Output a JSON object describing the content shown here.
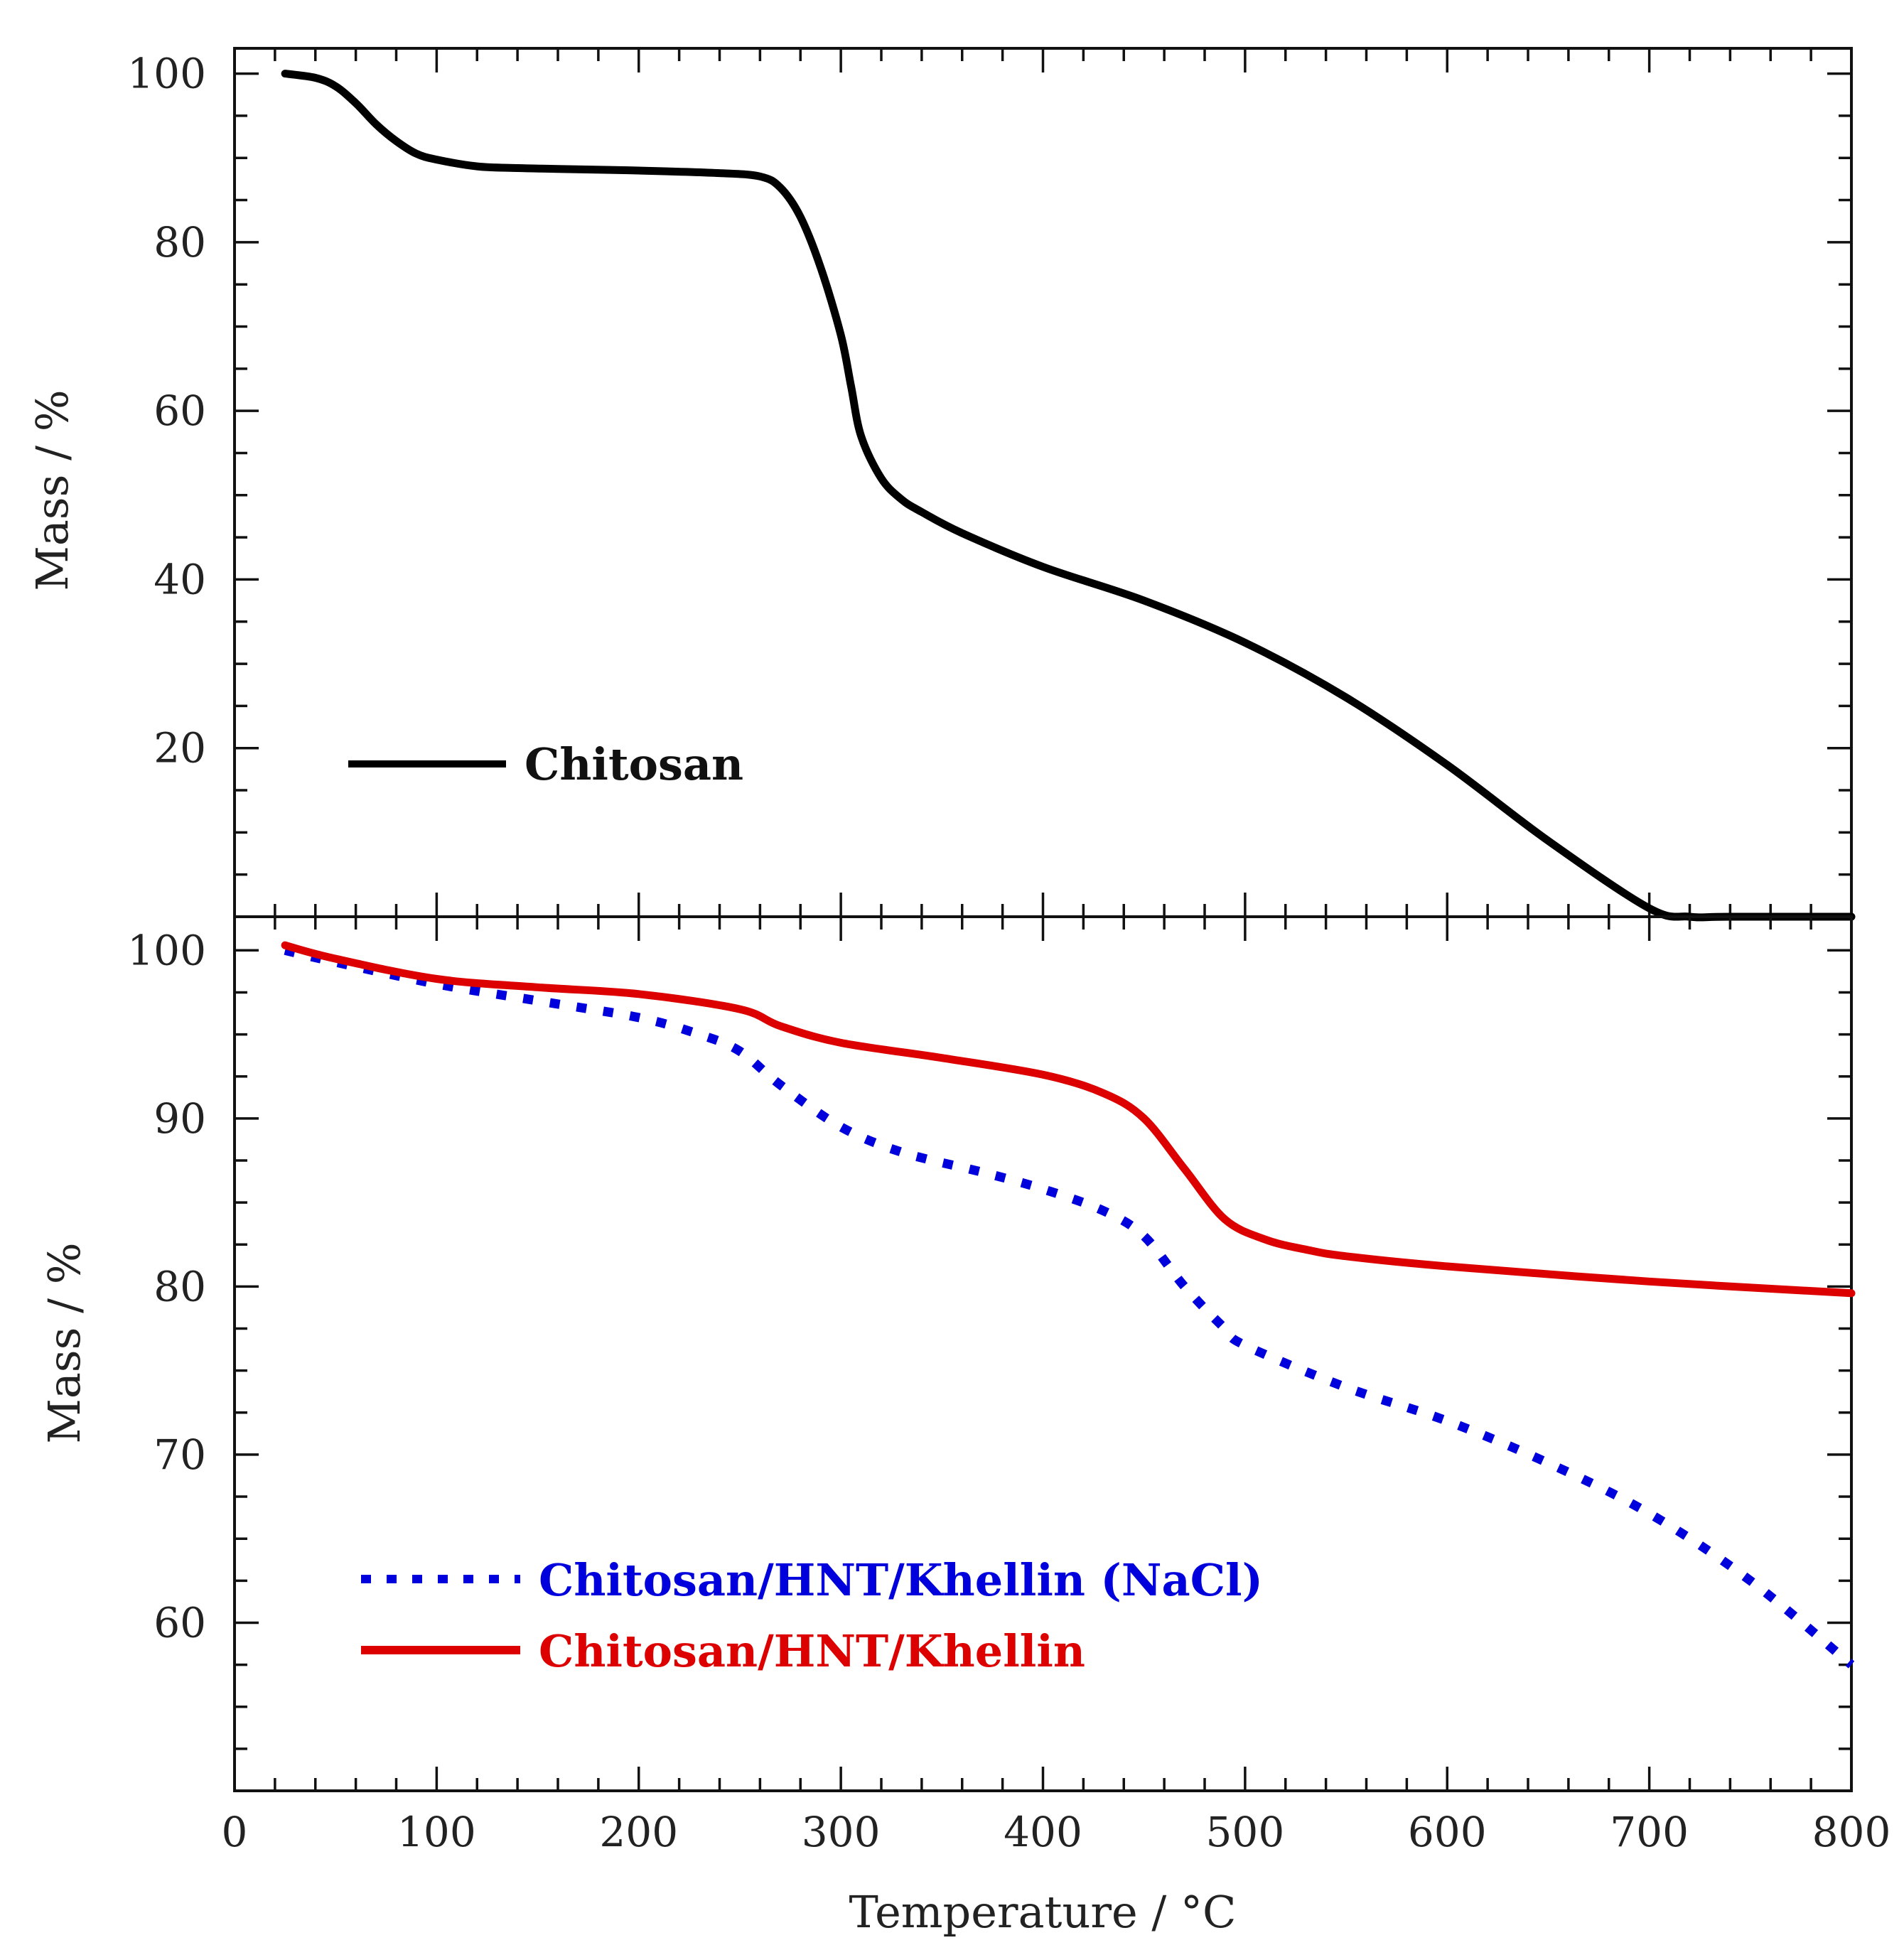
{
  "chart_data": [
    {
      "type": "line",
      "panel": "top",
      "title": "",
      "xlabel": "",
      "ylabel": "Mass / %",
      "xlim": [
        0,
        800
      ],
      "ylim": [
        0,
        103
      ],
      "yticks": [
        20,
        40,
        60,
        80,
        100
      ],
      "legend_position": "bottom-left",
      "series": [
        {
          "name": "Chitosan",
          "color": "#000000",
          "style": "solid",
          "x": [
            25,
            40,
            50,
            60,
            70,
            80,
            90,
            100,
            120,
            140,
            160,
            200,
            240,
            260,
            270,
            280,
            290,
            300,
            305,
            310,
            320,
            330,
            340,
            360,
            400,
            450,
            500,
            550,
            600,
            650,
            700,
            720,
            740,
            800
          ],
          "y": [
            100,
            99.5,
            98.5,
            96.5,
            94,
            92,
            90.5,
            89.8,
            89,
            88.8,
            88.7,
            88.5,
            88.2,
            87.8,
            86.5,
            83,
            77,
            69,
            63,
            57,
            52,
            49.5,
            48,
            45.5,
            41.5,
            37.5,
            32.5,
            26,
            18,
            9,
            1,
            0,
            0,
            0
          ]
        }
      ]
    },
    {
      "type": "line",
      "panel": "bottom",
      "title": "",
      "xlabel": "Temperature / °C",
      "ylabel": "Mass / %",
      "xlim": [
        0,
        800
      ],
      "ylim": [
        50,
        102
      ],
      "yticks": [
        60,
        70,
        80,
        90,
        100
      ],
      "xticks": [
        0,
        100,
        200,
        300,
        400,
        500,
        600,
        700,
        800
      ],
      "legend_position": "bottom-left",
      "series": [
        {
          "name": "Chitosan/HNT/Khellin (NaCl)",
          "color": "#0000dd",
          "style": "dotted",
          "x": [
            25,
            50,
            100,
            150,
            200,
            230,
            250,
            270,
            300,
            330,
            370,
            400,
            430,
            450,
            470,
            490,
            500,
            550,
            600,
            650,
            700,
            750,
            800
          ],
          "y": [
            100,
            99.3,
            98,
            97,
            96,
            95,
            94,
            92,
            89.5,
            88,
            86.8,
            85.8,
            84.5,
            83,
            80,
            77.5,
            76.5,
            74,
            72,
            69.5,
            66.5,
            62.5,
            57.5
          ]
        },
        {
          "name": "Chitosan/HNT/Khellin",
          "color": "#dd0000",
          "style": "solid",
          "x": [
            25,
            50,
            100,
            150,
            200,
            250,
            270,
            300,
            350,
            400,
            430,
            450,
            470,
            490,
            510,
            530,
            550,
            600,
            700,
            800
          ],
          "y": [
            100.3,
            99.5,
            98.3,
            97.8,
            97.4,
            96.5,
            95.5,
            94.5,
            93.6,
            92.6,
            91.5,
            90,
            87,
            84,
            82.8,
            82.2,
            81.8,
            81.2,
            80.3,
            79.6
          ]
        }
      ]
    }
  ]
}
